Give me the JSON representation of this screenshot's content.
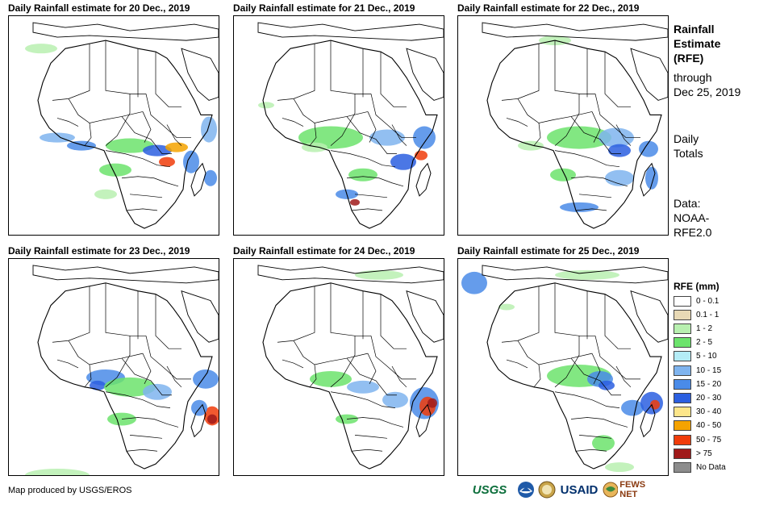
{
  "panels": [
    {
      "title": "Daily Rainfall estimate for 20 Dec., 2019",
      "day": 0
    },
    {
      "title": "Daily Rainfall estimate for 21 Dec., 2019",
      "day": 1
    },
    {
      "title": "Daily Rainfall estimate for 22 Dec., 2019",
      "day": 2
    },
    {
      "title": "Daily Rainfall estimate for 23 Dec., 2019",
      "day": 3
    },
    {
      "title": "Daily Rainfall estimate for 24 Dec., 2019",
      "day": 4
    },
    {
      "title": "Daily Rainfall estimate for 25 Dec., 2019",
      "day": 5
    }
  ],
  "side": {
    "title_lines": [
      "Rainfall",
      "Estimate",
      "(RFE)"
    ],
    "through": "through",
    "date": "Dec 25, 2019",
    "daily": "Daily",
    "totals": "Totals",
    "data_label": "Data:",
    "data_source_1": "NOAA-",
    "data_source_2": "RFE2.0"
  },
  "legend": {
    "title": "RFE (mm)",
    "items": [
      {
        "label": "0 - 0.1",
        "color": "#ffffff"
      },
      {
        "label": "0.1 - 1",
        "color": "#e8d9b5"
      },
      {
        "label": "1 - 2",
        "color": "#b8f0b0"
      },
      {
        "label": "2 - 5",
        "color": "#6ce36c"
      },
      {
        "label": "5 - 10",
        "color": "#b4ecf6"
      },
      {
        "label": "10 - 15",
        "color": "#7fb4ef"
      },
      {
        "label": "15 - 20",
        "color": "#4a8be8"
      },
      {
        "label": "20 - 30",
        "color": "#2b5fe0"
      },
      {
        "label": "30 - 40",
        "color": "#fde68a"
      },
      {
        "label": "40 - 50",
        "color": "#f5a300"
      },
      {
        "label": "50 - 75",
        "color": "#f03c0a"
      },
      {
        "label": "> 75",
        "color": "#a01a1a"
      },
      {
        "label": "No Data",
        "color": "#8c8c8c"
      }
    ]
  },
  "credit": "Map produced by USGS/EROS",
  "logos": [
    "USGS",
    "NOAA",
    "USAID",
    "FEWS NET"
  ],
  "colors": {
    "border": "#000000",
    "ocean": "#ffffff"
  }
}
